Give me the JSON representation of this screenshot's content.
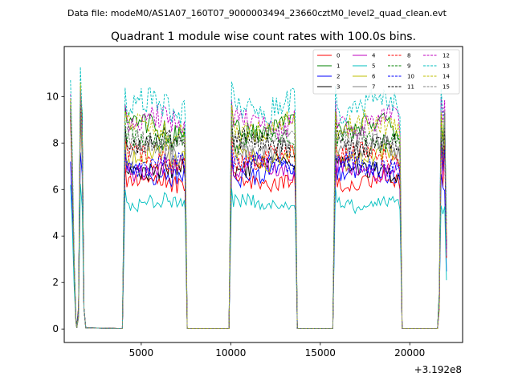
{
  "chart_data": {
    "type": "line",
    "suptitle": "Data file: modeM0/AS1A07_160T07_9000003494_23660cztM0_level2_quad_clean.evt",
    "title": "Quadrant 1 module wise count rates with 100.0s bins.",
    "xlabel": "",
    "ylabel": "",
    "offset_label": "+3.192e8",
    "xlim": [
      700,
      22950
    ],
    "ylim": [
      -0.58,
      12.15
    ],
    "x_ticks": [
      5000,
      10000,
      15000,
      20000
    ],
    "x_tick_labels": [
      "5000",
      "10000",
      "15000",
      "20000"
    ],
    "y_ticks": [
      0,
      2,
      4,
      6,
      8,
      10
    ],
    "y_tick_labels": [
      "0",
      "2",
      "4",
      "6",
      "8",
      "10"
    ],
    "grid": false,
    "legend_position": "top-right",
    "segments": [
      {
        "x_start": 4100,
        "x_end": 7450
      },
      {
        "x_start": 10050,
        "x_end": 13600
      },
      {
        "x_start": 15850,
        "x_end": 19450
      }
    ],
    "series": [
      {
        "name": "0",
        "color": "#ff0000",
        "dash": "solid",
        "level": 6.3,
        "spike": 9.3
      },
      {
        "name": "1",
        "color": "#008000",
        "dash": "solid",
        "level": 8.6,
        "spike": 9.8
      },
      {
        "name": "2",
        "color": "#0000ff",
        "dash": "solid",
        "level": 6.7,
        "spike": 7.2
      },
      {
        "name": "3",
        "color": "#000000",
        "dash": "solid",
        "level": 6.9,
        "spike": 9.2
      },
      {
        "name": "4",
        "color": "#bf00bf",
        "dash": "solid",
        "level": 6.9,
        "spike": 9.0
      },
      {
        "name": "5",
        "color": "#00bfbf",
        "dash": "solid",
        "level": 5.4,
        "spike": 6.2
      },
      {
        "name": "6",
        "color": "#bfbf00",
        "dash": "solid",
        "level": 7.4,
        "spike": 9.0
      },
      {
        "name": "7",
        "color": "#808080",
        "dash": "solid",
        "level": 7.7,
        "spike": 9.1
      },
      {
        "name": "8",
        "color": "#ff0000",
        "dash": "dashed",
        "level": 7.4,
        "spike": 9.0
      },
      {
        "name": "9",
        "color": "#008000",
        "dash": "dashed",
        "level": 8.2,
        "spike": 9.5
      },
      {
        "name": "10",
        "color": "#0000ff",
        "dash": "dashed",
        "level": 7.1,
        "spike": 9.4
      },
      {
        "name": "11",
        "color": "#000000",
        "dash": "dashed",
        "level": 8.0,
        "spike": 9.6
      },
      {
        "name": "12",
        "color": "#bf00bf",
        "dash": "dashed",
        "level": 8.9,
        "spike": 10.1
      },
      {
        "name": "13",
        "color": "#00bfbf",
        "dash": "dashed",
        "level": 9.6,
        "spike": 10.7
      },
      {
        "name": "14",
        "color": "#bfbf00",
        "dash": "dashed",
        "level": 8.7,
        "spike": 9.9
      },
      {
        "name": "15",
        "color": "#808080",
        "dash": "dashed",
        "level": 8.1,
        "spike": 9.4
      }
    ]
  }
}
